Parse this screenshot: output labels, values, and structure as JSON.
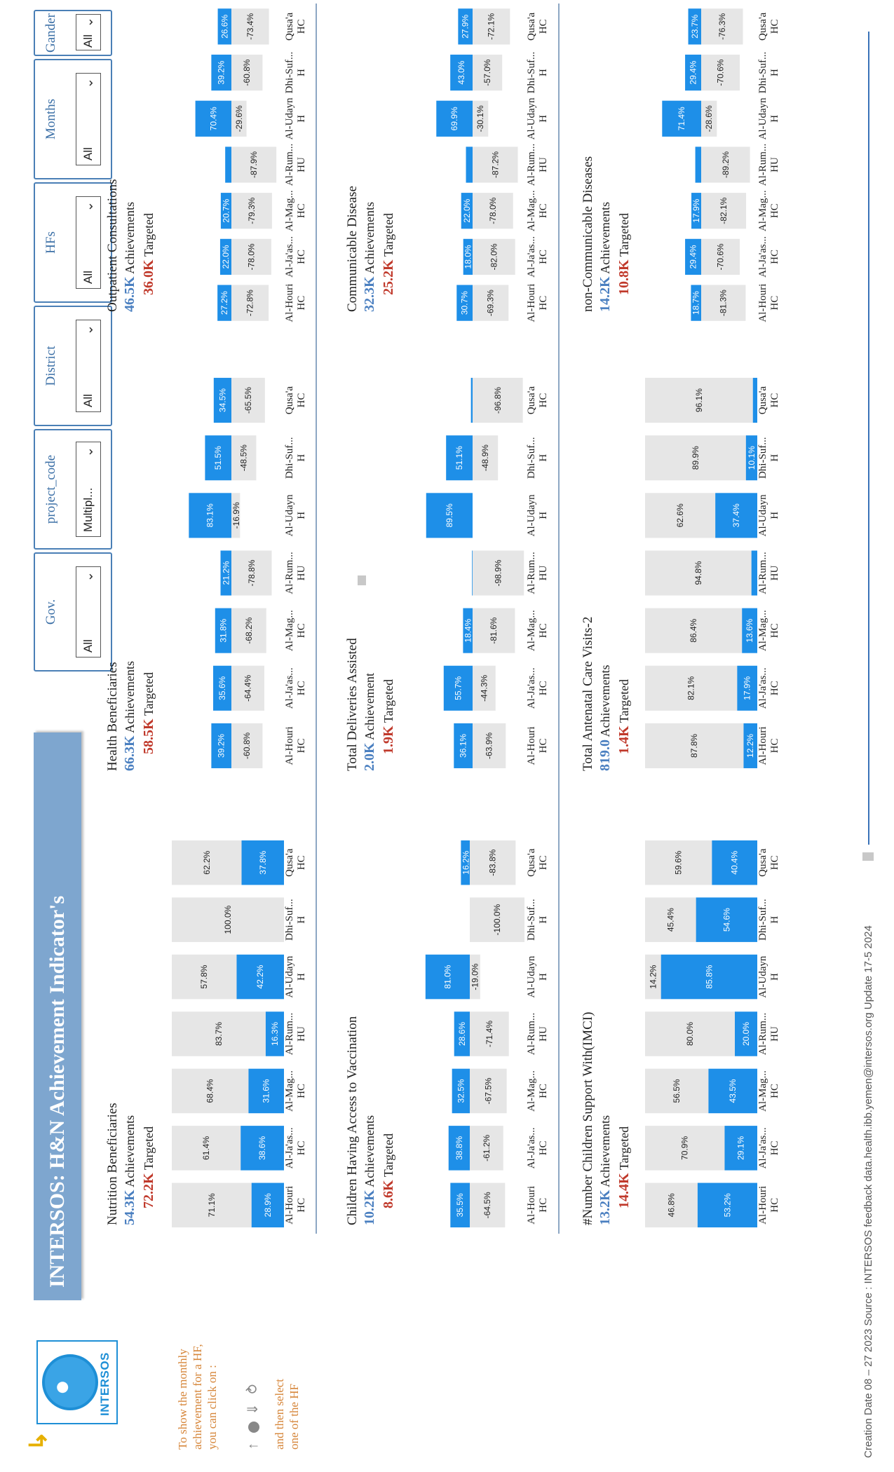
{
  "logo": {
    "name": "INTERSOS",
    "back_icon": "back-arrow-icon",
    "globe_icon": "globe-icon"
  },
  "help": {
    "line1": "To show the monthly",
    "line2": "achievement for a HF,",
    "line3": "you can click on :",
    "icons": [
      "up-arrow-icon",
      "drill-down-icon",
      "expand-down-icon",
      "fork-icon"
    ],
    "line4": "and then select",
    "line5": "one of the HF"
  },
  "banner": {
    "title": "INTERSOS: H&N Achievement Indicator's"
  },
  "filters": [
    {
      "label": "Gov.",
      "value": "All"
    },
    {
      "label": "project_code",
      "value": "Multipl..."
    },
    {
      "label": "District",
      "value": "All"
    },
    {
      "label": "HFs",
      "value": "All"
    },
    {
      "label": "Months",
      "value": "All"
    },
    {
      "label": "Gander",
      "value": "All"
    }
  ],
  "colors": {
    "achieved": "#1e8fe8",
    "remaining": "#e6e6e6",
    "target": "#c0392b",
    "achievement": "#4a7fc0"
  },
  "categories": [
    [
      "Al-Houri",
      "HC"
    ],
    [
      "Al-Ja'as...",
      "HC"
    ],
    [
      "Al-Mag...",
      "HC"
    ],
    [
      "Al-Rum...",
      "HU"
    ],
    [
      "Al-Udayn",
      "H"
    ],
    [
      "Dhi-Suf...",
      "H"
    ],
    [
      "Qusa'a",
      "HC"
    ]
  ],
  "sections": {
    "nutrition": {
      "title": "Nutrition Beneficiaries",
      "ach_value": "54.3K",
      "ach_label": "Achievements",
      "tar_value": "72.2K",
      "tar_label": "Targeted"
    },
    "health": {
      "title": "Health Beneficiaries",
      "ach_value": "66.3K",
      "ach_label": "Achievements",
      "tar_value": "58.5K",
      "tar_label": "Targeted"
    },
    "opd": {
      "title": "Outpatient Consultations",
      "ach_value": "46.5K",
      "ach_label": "Achievements",
      "tar_value": "36.0K",
      "tar_label": "Targeted"
    },
    "vacc": {
      "title": "Children Having Access to Vaccination",
      "ach_value": "10.2K",
      "ach_label": "Achievements",
      "tar_value": "8.6K",
      "tar_label": "Targeted"
    },
    "deliv": {
      "title": "Total Deliveries Assisted",
      "ach_value": "2.0K",
      "ach_label": "Achievement",
      "tar_value": "1.9K",
      "tar_label": "Targeted"
    },
    "commd": {
      "title": "Communicable Disease",
      "ach_value": "32.3K",
      "ach_label": "Achievements",
      "tar_value": "25.2K",
      "tar_label": "Targeted"
    },
    "imci": {
      "title": "#Number Children Support With(IMCI)",
      "ach_value": "13.2K",
      "ach_label": "Achievements",
      "tar_value": "14.4K",
      "tar_label": "Targeted"
    },
    "anc": {
      "title": "Total  Antenatal Care Visits-2",
      "ach_value": "819.0",
      "ach_label": "Achievements",
      "tar_value": "1.4K",
      "tar_label": "Targeted"
    },
    "ncd": {
      "title": "non-Communicable Diseases",
      "ach_value": "14.2K",
      "ach_label": "Achievements",
      "tar_value": "10.8K",
      "tar_label": "Targeted"
    }
  },
  "chart_data": [
    {
      "id": "nutrition",
      "type": "bar",
      "stacked": "100%",
      "categories": [
        "Al-Houri HC",
        "Al-Ja'as... HC",
        "Al-Mag... HC",
        "Al-Rum... HU",
        "Al-Udayn H",
        "Dhi-Suf... H",
        "Qusa'a HC"
      ],
      "series": [
        {
          "values": [
            28.9,
            38.6,
            31.6,
            16.3,
            42.2,
            0,
            37.8
          ]
        },
        {
          "values": [
            71.1,
            61.4,
            68.4,
            83.7,
            57.8,
            100.0,
            62.2
          ]
        }
      ],
      "labels_a": [
        "28.9%",
        "38.6%",
        "31.6%",
        "16.3%",
        "42.2%",
        "",
        "37.8%"
      ],
      "labels_b": [
        "71.1%",
        "61.4%",
        "68.4%",
        "83.7%",
        "57.8%",
        "100.0%",
        "62.2%"
      ]
    },
    {
      "id": "vacc",
      "type": "bar",
      "diverging": true,
      "categories": [
        "Al-Houri HC",
        "Al-Ja'as... HC",
        "Al-Mag... HC",
        "Al-Rum... HU",
        "Al-Udayn H",
        "Dhi-Suf... H",
        "Qusa'a HC"
      ],
      "series": [
        {
          "values": [
            35.5,
            38.8,
            32.5,
            28.6,
            81.0,
            0,
            16.2
          ]
        },
        {
          "values": [
            -64.5,
            -61.2,
            -67.5,
            -71.4,
            -19.0,
            -100.0,
            -83.8
          ]
        }
      ],
      "labels_a": [
        "35.5%",
        "38.8%",
        "32.5%",
        "28.6%",
        "81.0%",
        "",
        "16.2%"
      ],
      "labels_b": [
        "-64.5%",
        "-61.2%",
        "-67.5%",
        "-71.4%",
        "-19.0%",
        "-100.0%",
        "-83.8%"
      ]
    },
    {
      "id": "imci",
      "type": "bar",
      "stacked": "100%",
      "categories": [
        "Al-Houri HC",
        "Al-Ja'as... HC",
        "Al-Mag... HC",
        "Al-Rum... HU",
        "Al-Udayn H",
        "Dhi-Suf... H",
        "Qusa'a HC"
      ],
      "series": [
        {
          "values": [
            53.2,
            29.1,
            43.5,
            20.0,
            85.8,
            54.6,
            40.4
          ]
        },
        {
          "values": [
            46.8,
            70.9,
            56.5,
            80.0,
            14.2,
            45.4,
            59.6
          ]
        }
      ],
      "labels_a": [
        "53.2%",
        "29.1%",
        "43.5%",
        "20.0%",
        "85.8%",
        "54.6%",
        "40.4%"
      ],
      "labels_b": [
        "46.8%",
        "70.9%",
        "56.5%",
        "80.0%",
        "14.2%",
        "45.4%",
        "59.6%"
      ]
    },
    {
      "id": "health",
      "type": "bar",
      "diverging": true,
      "categories": [
        "Al-Houri HC",
        "Al-Ja'as... HC",
        "Al-Mag... HC",
        "Al-Rum... HU",
        "Al-Udayn H",
        "Dhi-Suf... H",
        "Qusa'a HC"
      ],
      "series": [
        {
          "values": [
            39.2,
            35.6,
            31.8,
            21.2,
            83.1,
            51.5,
            34.5
          ]
        },
        {
          "values": [
            -60.8,
            -64.4,
            -68.2,
            -78.8,
            -16.9,
            -48.5,
            -65.5
          ]
        }
      ],
      "labels_a": [
        "39.2%",
        "35.6%",
        "31.8%",
        "21.2%",
        "83.1%",
        "51.5%",
        "34.5%"
      ],
      "labels_b": [
        "-60.8%",
        "-64.4%",
        "-68.2%",
        "-78.8%",
        "-16.9%",
        "-48.5%",
        "-65.5%"
      ]
    },
    {
      "id": "deliv",
      "type": "bar",
      "diverging": true,
      "categories": [
        "Al-Houri HC",
        "Al-Ja'as... HC",
        "Al-Mag... HC",
        "Al-Rum... HU",
        "Al-Udayn H",
        "Dhi-Suf... H",
        "Qusa'a HC"
      ],
      "series": [
        {
          "values": [
            36.1,
            55.7,
            18.4,
            1.1,
            89.5,
            51.1,
            3.2
          ]
        },
        {
          "values": [
            -63.9,
            -44.3,
            -81.6,
            -98.9,
            0,
            -48.9,
            -96.8
          ]
        }
      ],
      "labels_a": [
        "36.1%",
        "55.7%",
        "18.4%",
        "",
        "89.5%",
        "51.1%",
        ""
      ],
      "labels_b": [
        "-63.9%",
        "-44.3%",
        "-81.6%",
        "-98.9%",
        "",
        "-48.9%",
        "-96.8%"
      ]
    },
    {
      "id": "anc",
      "type": "bar",
      "stacked": "100%",
      "categories": [
        "Al-Houri HC",
        "Al-Ja'as... HC",
        "Al-Mag... HC",
        "Al-Rum... HU",
        "Al-Udayn H",
        "Dhi-Suf... H",
        "Qusa'a HC"
      ],
      "series": [
        {
          "values": [
            12.2,
            17.9,
            13.6,
            5.2,
            37.4,
            10.1,
            3.9
          ]
        },
        {
          "values": [
            87.8,
            82.1,
            86.4,
            94.8,
            62.6,
            89.9,
            96.1
          ]
        }
      ],
      "labels_a": [
        "12.2%",
        "17.9%",
        "13.6%",
        "",
        "37.4%",
        "10.1%",
        ""
      ],
      "labels_b": [
        "87.8%",
        "82.1%",
        "86.4%",
        "94.8%",
        "62.6%",
        "89.9%",
        "96.1%"
      ]
    },
    {
      "id": "opd",
      "type": "bar",
      "diverging": true,
      "categories": [
        "Al-Houri HC",
        "Al-Ja'as... HC",
        "Al-Mag... HC",
        "Al-Rum... HU",
        "Al-Udayn H",
        "Dhi-Suf... H",
        "Qusa'a HC"
      ],
      "series": [
        {
          "values": [
            27.2,
            22.0,
            20.7,
            12.1,
            70.4,
            39.2,
            26.6
          ]
        },
        {
          "values": [
            -72.8,
            -78.0,
            -79.3,
            -87.9,
            -29.6,
            -60.8,
            -73.4
          ]
        }
      ],
      "labels_a": [
        "27.2%",
        "22.0%",
        "20.7%",
        "",
        "70.4%",
        "39.2%",
        "26.6%"
      ],
      "labels_b": [
        "-72.8%",
        "-78.0%",
        "-79.3%",
        "-87.9%",
        "-29.6%",
        "-60.8%",
        "-73.4%"
      ]
    },
    {
      "id": "commd",
      "type": "bar",
      "diverging": true,
      "categories": [
        "Al-Houri HC",
        "Al-Ja'as... HC",
        "Al-Mag... HC",
        "Al-Rum... HU",
        "Al-Udayn H",
        "Dhi-Suf... H",
        "Qusa'a HC"
      ],
      "series": [
        {
          "values": [
            30.7,
            18.0,
            22.0,
            12.8,
            69.9,
            43.0,
            27.9
          ]
        },
        {
          "values": [
            -69.3,
            -82.0,
            -78.0,
            -87.2,
            -30.1,
            -57.0,
            -72.1
          ]
        }
      ],
      "labels_a": [
        "30.7%",
        "18.0%",
        "22.0%",
        "",
        "69.9%",
        "43.0%",
        "27.9%"
      ],
      "labels_b": [
        "-69.3%",
        "-82.0%",
        "-78.0%",
        "-87.2%",
        "-30.1%",
        "-57.0%",
        "-72.1%"
      ]
    },
    {
      "id": "ncd",
      "type": "bar",
      "diverging": true,
      "categories": [
        "Al-Houri HC",
        "Al-Ja'as... HC",
        "Al-Mag... HC",
        "Al-Rum... HU",
        "Al-Udayn H",
        "Dhi-Suf... H",
        "Qusa'a HC"
      ],
      "series": [
        {
          "values": [
            18.7,
            29.4,
            17.9,
            10.8,
            71.4,
            29.4,
            23.7
          ]
        },
        {
          "values": [
            -81.3,
            -70.6,
            -82.1,
            -89.2,
            -28.6,
            -70.6,
            -76.3
          ]
        }
      ],
      "labels_a": [
        "18.7%",
        "29.4%",
        "17.9%",
        "",
        "71.4%",
        "29.4%",
        "23.7%"
      ],
      "labels_b": [
        "-81.3%",
        "-70.6%",
        "-82.1%",
        "-89.2%",
        "-28.6%",
        "-70.6%",
        "-76.3%"
      ]
    }
  ],
  "footer": {
    "text": "Creation Date 08 – 27 2023 Source : INTERSOS feedback data.health.ibb.yemen@intersos.org Update 17-5 2024"
  }
}
